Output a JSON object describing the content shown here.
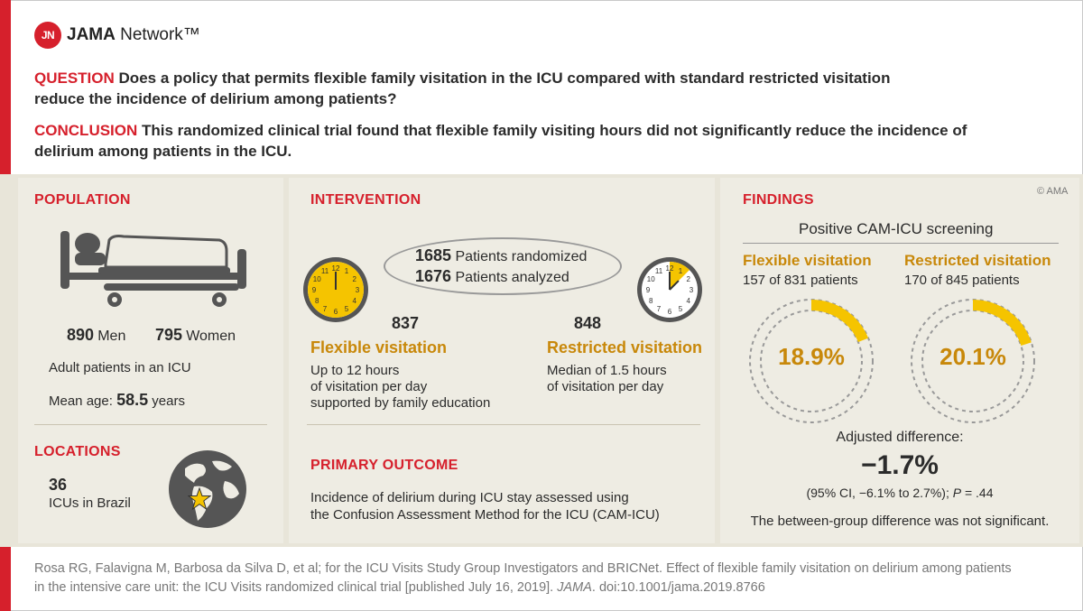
{
  "brand": {
    "badge": "JN",
    "name_bold": "JAMA",
    "name_rest": " Network™"
  },
  "question": {
    "label": "QUESTION",
    "text": "Does a policy that permits flexible family visitation in the ICU compared with standard restricted visitation reduce the incidence of delirium among patients?"
  },
  "conclusion": {
    "label": "CONCLUSION",
    "text": "This randomized clinical trial found that flexible family visiting hours did not significantly reduce the incidence of delirium among patients in the ICU."
  },
  "copyright": "© AMA",
  "population": {
    "title": "POPULATION",
    "men_count": "890",
    "men_label": "Men",
    "women_count": "795",
    "women_label": "Women",
    "description": "Adult patients in an ICU",
    "mean_age_label": "Mean age:",
    "mean_age_value": "58.5",
    "mean_age_unit": "years"
  },
  "locations": {
    "title": "LOCATIONS",
    "count": "36",
    "label": "ICUs in Brazil"
  },
  "intervention": {
    "title": "INTERVENTION",
    "randomized_count": "1685",
    "randomized_label": "Patients randomized",
    "analyzed_count": "1676",
    "analyzed_label": "Patients analyzed",
    "flexible": {
      "count": "837",
      "title": "Flexible visitation",
      "line1": "Up to 12 hours",
      "line2": "of visitation per day",
      "line3": "supported by family education"
    },
    "restricted": {
      "count": "848",
      "title": "Restricted visitation",
      "line1": "Median of 1.5 hours",
      "line2": "of visitation per day"
    },
    "clock_numbers": [
      "12",
      "1",
      "2",
      "3",
      "4",
      "5",
      "6",
      "7",
      "8",
      "9",
      "10",
      "11"
    ],
    "flexible_clock_fraction": 1.0,
    "restricted_clock_fraction": 0.125
  },
  "primary_outcome": {
    "title": "PRIMARY OUTCOME",
    "line1": "Incidence of delirium during ICU stay assessed using",
    "line2": "the Confusion Assessment Method for the ICU (CAM-ICU)"
  },
  "findings": {
    "title": "FINDINGS",
    "subtitle": "Positive CAM-ICU screening",
    "flexible": {
      "title": "Flexible visitation",
      "counts": "157 of 831 patients",
      "percent": "18.9%",
      "fraction": 0.189
    },
    "restricted": {
      "title": "Restricted visitation",
      "counts": "170 of 845 patients",
      "percent": "20.1%",
      "fraction": 0.201
    },
    "adjusted_label": "Adjusted difference:",
    "adjusted_value": "−1.7%",
    "ci_text": "(95% CI, −6.1% to 2.7%); ",
    "p_label": "P",
    "p_value": " = .44",
    "note": "The between-group difference was not significant."
  },
  "citation": {
    "line1": "Rosa RG, Falavigna M, Barbosa da Silva D, et al; for the ICU Visits Study Group Investigators and BRICNet. Effect of flexible family visitation on delirium among patients",
    "line2_pre": "in the intensive care unit: the ICU Visits randomized clinical trial [published July 16, 2019]. ",
    "journal": "JAMA",
    "line2_post": ". doi:10.1001/jama.2019.8766"
  },
  "colors": {
    "red": "#d6202c",
    "gold": "#f5c400",
    "orange_text": "#c8880a",
    "band": "#e8e5d9",
    "panel": "#eeece3",
    "dark_icon": "#555555"
  },
  "icons": [
    "hospital-bed-icon",
    "globe-icon",
    "star-icon",
    "clock-icon"
  ]
}
